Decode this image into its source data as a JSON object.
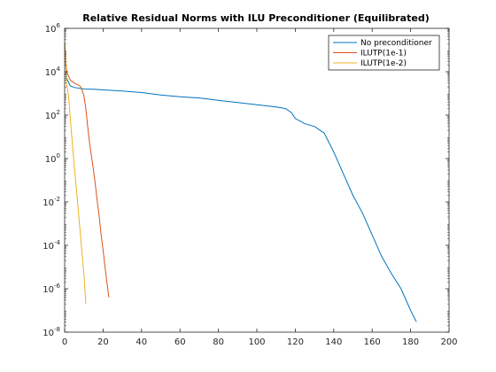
{
  "chart_data": {
    "type": "line",
    "title": "Relative Residual Norms with ILU Preconditioner (Equilibrated)",
    "xlabel": "",
    "ylabel": "",
    "xlim": [
      0,
      200
    ],
    "ylim_log10": [
      -8,
      6
    ],
    "y_scale": "log",
    "grid": false,
    "legend_position": "top-right",
    "x_ticks": [
      0,
      20,
      40,
      60,
      80,
      100,
      120,
      140,
      160,
      180,
      200
    ],
    "y_ticks": [
      {
        "base": "10",
        "exp": "-8",
        "value": 1e-08
      },
      {
        "base": "10",
        "exp": "-6",
        "value": 1e-06
      },
      {
        "base": "10",
        "exp": "-4",
        "value": 0.0001
      },
      {
        "base": "10",
        "exp": "-2",
        "value": 0.01
      },
      {
        "base": "10",
        "exp": "0",
        "value": 1
      },
      {
        "base": "10",
        "exp": "2",
        "value": 100.0
      },
      {
        "base": "10",
        "exp": "4",
        "value": 10000.0
      },
      {
        "base": "10",
        "exp": "6",
        "value": 1000000.0
      }
    ],
    "series": [
      {
        "name": "No preconditioner",
        "color": "#0072BD",
        "points": [
          [
            0,
            200000.0
          ],
          [
            1,
            5000.0
          ],
          [
            3,
            2200.0
          ],
          [
            5,
            1900.0
          ],
          [
            10,
            1600.0
          ],
          [
            15,
            1550.0
          ],
          [
            20,
            1450.0
          ],
          [
            30,
            1300.0
          ],
          [
            40,
            1100.0
          ],
          [
            50,
            850
          ],
          [
            60,
            700
          ],
          [
            70,
            620
          ],
          [
            80,
            480
          ],
          [
            90,
            380
          ],
          [
            100,
            300
          ],
          [
            110,
            240
          ],
          [
            115,
            200
          ],
          [
            118,
            130
          ],
          [
            120,
            70
          ],
          [
            125,
            40
          ],
          [
            130,
            30
          ],
          [
            135,
            15
          ],
          [
            140,
            2
          ],
          [
            145,
            0.2
          ],
          [
            150,
            0.02
          ],
          [
            155,
            0.003
          ],
          [
            160,
            0.0003
          ],
          [
            165,
            3e-05
          ],
          [
            170,
            5e-06
          ],
          [
            175,
            1e-06
          ],
          [
            180,
            1e-07
          ],
          [
            183,
            3e-08
          ]
        ]
      },
      {
        "name": "ILUTP(1e-1)",
        "color": "#D95319",
        "points": [
          [
            0,
            200000.0
          ],
          [
            1,
            10000.0
          ],
          [
            3,
            4000.0
          ],
          [
            5,
            3000.0
          ],
          [
            8,
            2200.0
          ],
          [
            9,
            1500.0
          ],
          [
            10,
            800
          ],
          [
            11,
            200
          ],
          [
            12,
            30
          ],
          [
            13,
            5
          ],
          [
            14,
            1.2
          ],
          [
            15,
            0.3
          ],
          [
            16,
            0.06
          ],
          [
            17,
            0.01
          ],
          [
            18,
            0.002
          ],
          [
            19,
            0.0003
          ],
          [
            20,
            6e-05
          ],
          [
            21,
            1e-05
          ],
          [
            22,
            2e-06
          ],
          [
            23,
            4e-07
          ]
        ]
      },
      {
        "name": "ILUTP(1e-2)",
        "color": "#EDB120",
        "points": [
          [
            0,
            200000.0
          ],
          [
            1,
            3000.0
          ],
          [
            2,
            800
          ],
          [
            3,
            60
          ],
          [
            4,
            5
          ],
          [
            5,
            0.5
          ],
          [
            6,
            0.05
          ],
          [
            7,
            0.005
          ],
          [
            8,
            0.0005
          ],
          [
            9,
            5e-05
          ],
          [
            10,
            5e-06
          ],
          [
            11,
            2e-07
          ]
        ]
      }
    ]
  }
}
